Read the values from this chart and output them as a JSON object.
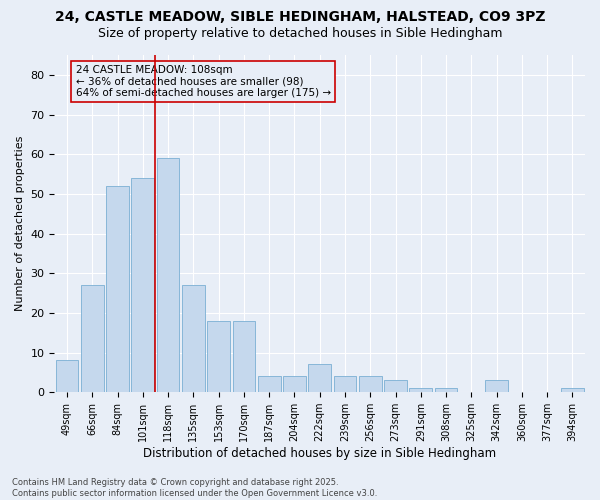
{
  "title1": "24, CASTLE MEADOW, SIBLE HEDINGHAM, HALSTEAD, CO9 3PZ",
  "title2": "Size of property relative to detached houses in Sible Hedingham",
  "xlabel": "Distribution of detached houses by size in Sible Hedingham",
  "ylabel": "Number of detached properties",
  "categories": [
    "49sqm",
    "66sqm",
    "84sqm",
    "101sqm",
    "118sqm",
    "135sqm",
    "153sqm",
    "170sqm",
    "187sqm",
    "204sqm",
    "222sqm",
    "239sqm",
    "256sqm",
    "273sqm",
    "291sqm",
    "308sqm",
    "325sqm",
    "342sqm",
    "360sqm",
    "377sqm",
    "394sqm"
  ],
  "values": [
    8,
    27,
    52,
    54,
    59,
    27,
    18,
    18,
    4,
    4,
    7,
    4,
    4,
    3,
    1,
    1,
    0,
    3,
    0,
    0,
    1
  ],
  "bar_color": "#c5d8ed",
  "bar_edge_color": "#7aafd4",
  "vline_index": 3,
  "vline_color": "#cc0000",
  "annotation_text": "24 CASTLE MEADOW: 108sqm\n← 36% of detached houses are smaller (98)\n64% of semi-detached houses are larger (175) →",
  "annotation_fontsize": 7.5,
  "box_edge_color": "#cc0000",
  "footer": "Contains HM Land Registry data © Crown copyright and database right 2025.\nContains public sector information licensed under the Open Government Licence v3.0.",
  "ylim": [
    0,
    85
  ],
  "yticks": [
    0,
    10,
    20,
    30,
    40,
    50,
    60,
    70,
    80
  ],
  "bg_color": "#e8eef7",
  "grid_color": "#ffffff",
  "title1_fontsize": 10,
  "title2_fontsize": 9
}
